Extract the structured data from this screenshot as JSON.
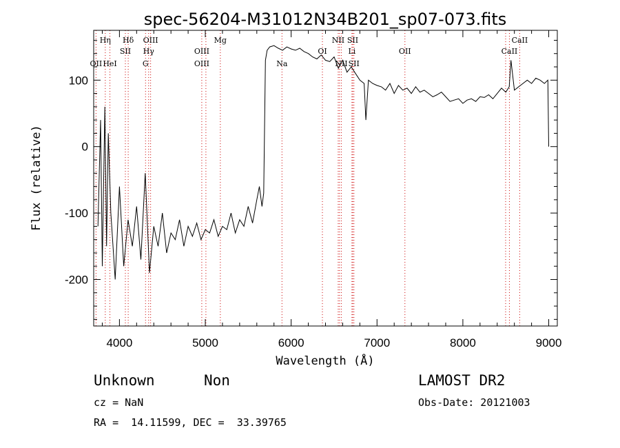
{
  "chart_data": {
    "type": "line",
    "title": "spec-56204-M31012N34B201_sp07-073.fits",
    "xlabel": "Wavelength (Å)",
    "ylabel": "Flux (relative)",
    "xlim": [
      3700,
      9100
    ],
    "ylim": [
      -270,
      175
    ],
    "x_ticks": [
      4000,
      5000,
      6000,
      7000,
      8000,
      9000
    ],
    "y_ticks": [
      -200,
      -100,
      0,
      100
    ],
    "grid": false,
    "line_color": "#000000",
    "marker_color": "#cc0000",
    "series": [
      {
        "x": [
          3750,
          3780,
          3800,
          3830,
          3850,
          3870,
          3900,
          3950,
          4000,
          4050,
          4100,
          4150,
          4200,
          4250,
          4300,
          4350,
          4400,
          4450,
          4500,
          4550,
          4600,
          4650,
          4700,
          4750,
          4800,
          4850,
          4900,
          4950,
          5000,
          5050,
          5100,
          5150,
          5200,
          5250,
          5300,
          5350,
          5400,
          5450,
          5500,
          5550,
          5600,
          5630,
          5660,
          5680,
          5700,
          5720,
          5750,
          5800,
          5850,
          5900,
          5950,
          6000,
          6050,
          6100,
          6150,
          6200,
          6250,
          6300,
          6350,
          6400,
          6450,
          6500,
          6550,
          6600,
          6650,
          6700,
          6750,
          6800,
          6850,
          6870,
          6900,
          6950,
          7000,
          7050,
          7100,
          7150,
          7200,
          7250,
          7300,
          7350,
          7400,
          7450,
          7500,
          7550,
          7600,
          7650,
          7700,
          7750,
          7800,
          7850,
          7900,
          7950,
          8000,
          8050,
          8100,
          8150,
          8200,
          8250,
          8300,
          8350,
          8400,
          8450,
          8500,
          8540,
          8560,
          8600,
          8650,
          8700,
          8750,
          8800,
          8850,
          8900,
          8950,
          8990,
          9000
        ],
        "y": [
          -120,
          40,
          -180,
          60,
          -150,
          20,
          -100,
          -200,
          -60,
          -180,
          -110,
          -150,
          -90,
          -170,
          -40,
          -190,
          -120,
          -150,
          -100,
          -160,
          -130,
          -140,
          -110,
          -150,
          -120,
          -135,
          -115,
          -140,
          -125,
          -130,
          -110,
          -135,
          -120,
          -125,
          -100,
          -130,
          -110,
          -120,
          -90,
          -115,
          -80,
          -60,
          -90,
          -70,
          130,
          145,
          150,
          152,
          148,
          145,
          150,
          147,
          145,
          148,
          143,
          140,
          135,
          132,
          138,
          130,
          128,
          135,
          118,
          130,
          112,
          120,
          110,
          100,
          95,
          40,
          100,
          95,
          92,
          90,
          85,
          95,
          80,
          92,
          85,
          88,
          80,
          90,
          82,
          85,
          80,
          75,
          78,
          82,
          75,
          68,
          70,
          72,
          65,
          70,
          72,
          68,
          75,
          74,
          78,
          72,
          80,
          88,
          82,
          90,
          130,
          85,
          90,
          95,
          100,
          95,
          103,
          100,
          95,
          100,
          0
        ]
      }
    ],
    "lines": [
      {
        "name": "Hη",
        "x": 3835,
        "row": 1
      },
      {
        "name": "OII",
        "x": 3727,
        "row": 3
      },
      {
        "name": "HeI",
        "x": 3889,
        "row": 3
      },
      {
        "name": "Hδ",
        "x": 4102,
        "row": 1
      },
      {
        "name": "SII",
        "x": 4069,
        "row": 2
      },
      {
        "name": "OIII",
        "x": 4363,
        "row": 1
      },
      {
        "name": "Hγ",
        "x": 4340,
        "row": 2
      },
      {
        "name": "G",
        "x": 4304,
        "row": 3
      },
      {
        "name": "OIII",
        "x": 4959,
        "row": 2
      },
      {
        "name": "OIII",
        "x": 4959,
        "row": 3
      },
      {
        "name": "Mg",
        "x": 5175,
        "row": 1
      },
      {
        "name": "Na",
        "x": 5893,
        "row": 3
      },
      {
        "name": "OI",
        "x": 6364,
        "row": 2
      },
      {
        "name": "NII",
        "x": 6548,
        "row": 1
      },
      {
        "name": "NII",
        "x": 6584,
        "row": 3
      },
      {
        "name": "SII",
        "x": 6717,
        "row": 1
      },
      {
        "name": "Li",
        "x": 6708,
        "row": 2
      },
      {
        "name": "SII",
        "x": 6731,
        "row": 3
      },
      {
        "name": "OII",
        "x": 7325,
        "row": 2
      },
      {
        "name": "CaII",
        "x": 8662,
        "row": 1
      },
      {
        "name": "CaII",
        "x": 8542,
        "row": 2
      }
    ],
    "line_markers_x": [
      3727,
      3835,
      3889,
      4069,
      4102,
      4304,
      4340,
      4363,
      4959,
      5007,
      5175,
      5893,
      6364,
      6548,
      6563,
      6584,
      6708,
      6717,
      6731,
      7325,
      8498,
      8542,
      8662
    ]
  },
  "footer": {
    "class_label": "Unknown",
    "subclass_label": "Non",
    "survey": "LAMOST DR2",
    "cz": "cz = NaN",
    "obs_date": "Obs-Date: 20121003",
    "coords": "RA =  14.11599, DEC =  33.39765"
  }
}
